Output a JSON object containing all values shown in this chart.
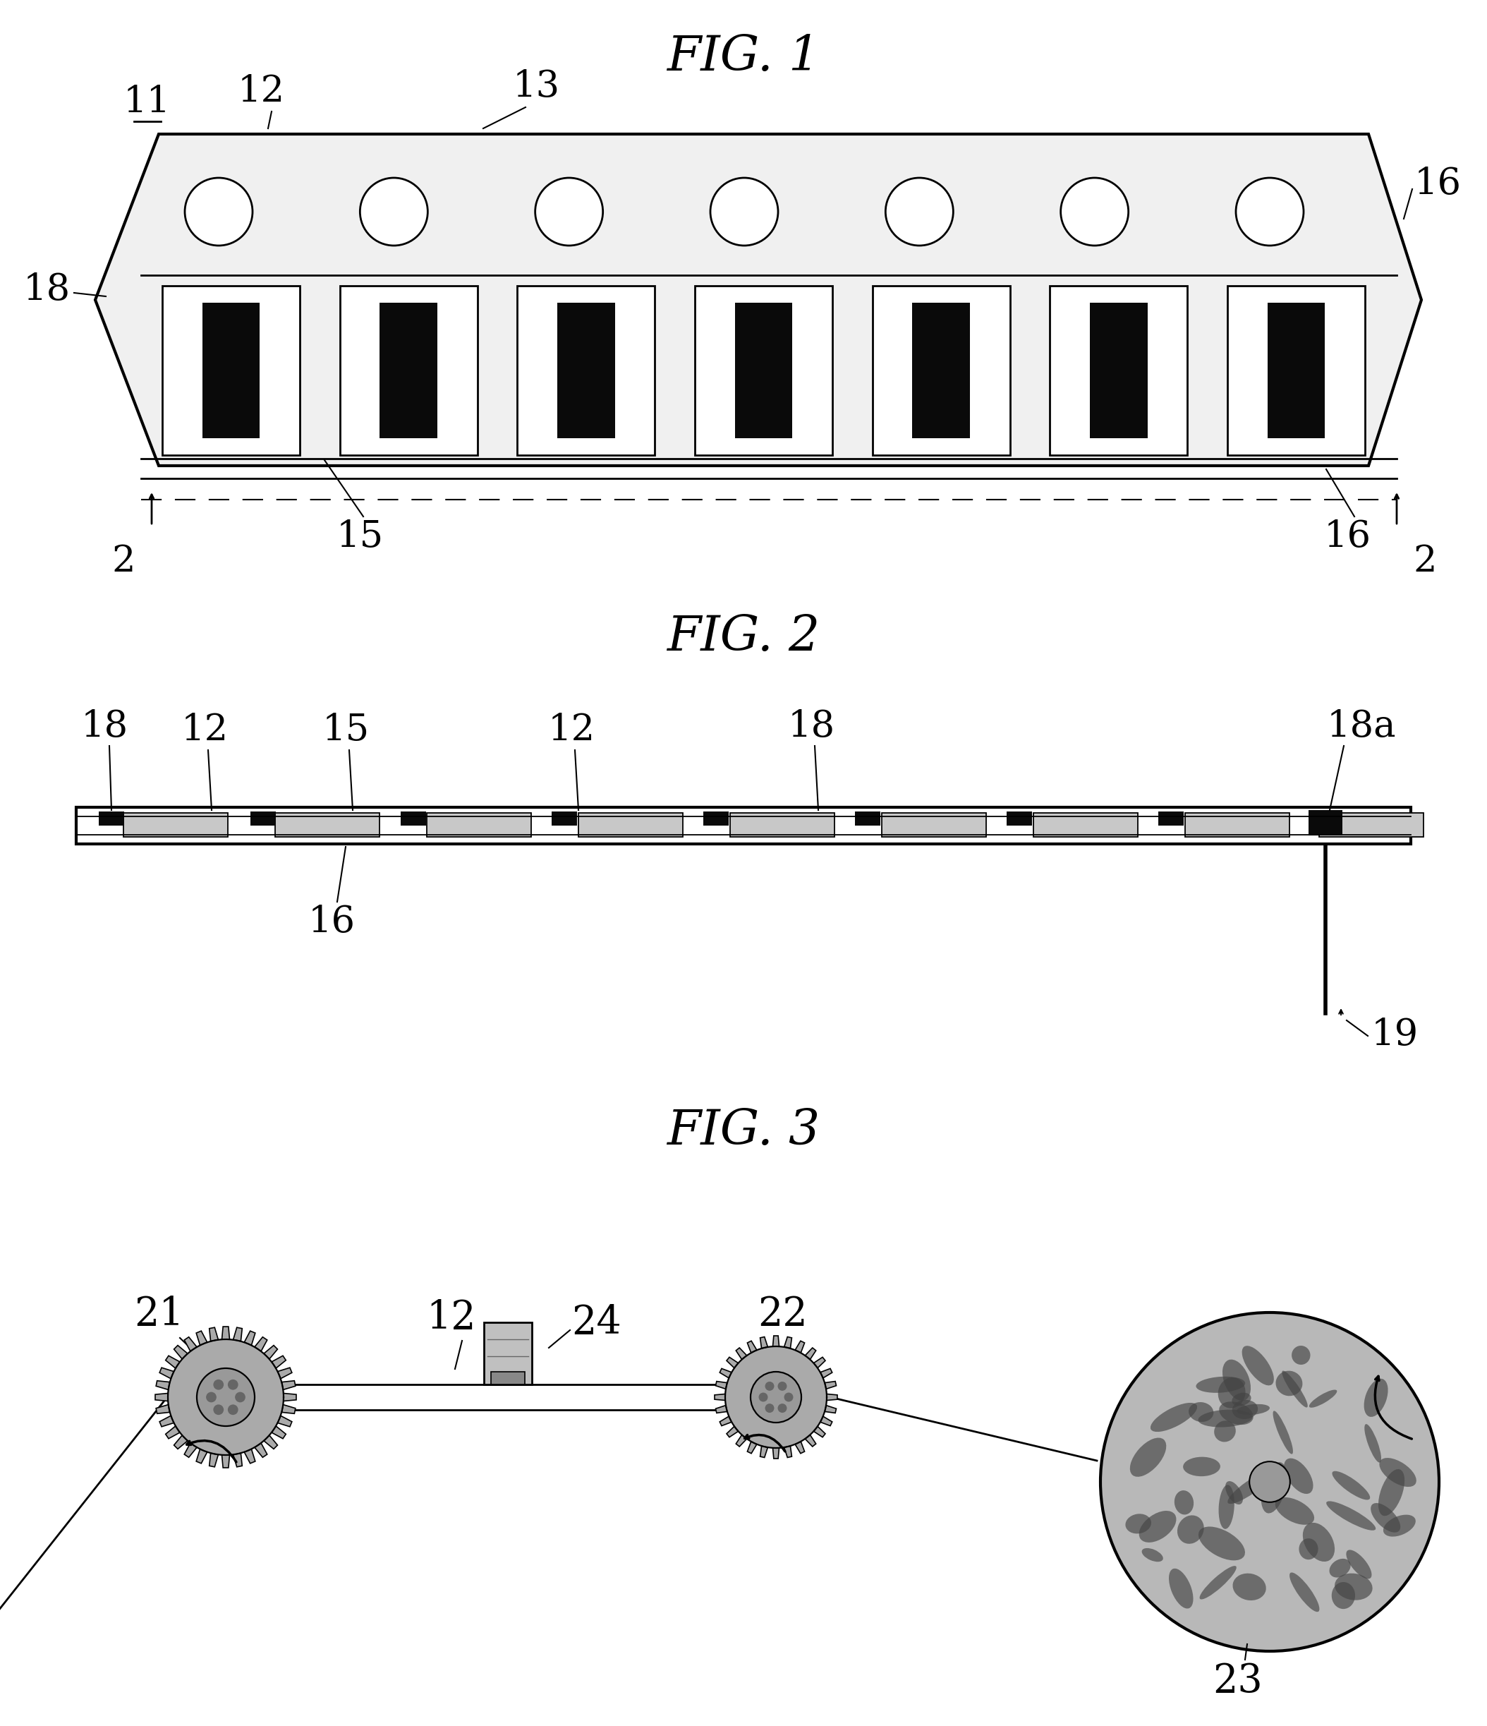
{
  "fig1_title": "FIG. 1",
  "fig2_title": "FIG. 2",
  "fig3_title": "FIG. 3",
  "bg_color": "#ffffff",
  "line_color": "#000000",
  "tape_fill": "#f0f0f0",
  "component_fill": "#0a0a0a",
  "pocket_fill": "#e0e0e0",
  "sprocket_hole_fill": "#ffffff",
  "gray_fill": "#c8c8c8",
  "reel_fill": "#b0b0b0"
}
